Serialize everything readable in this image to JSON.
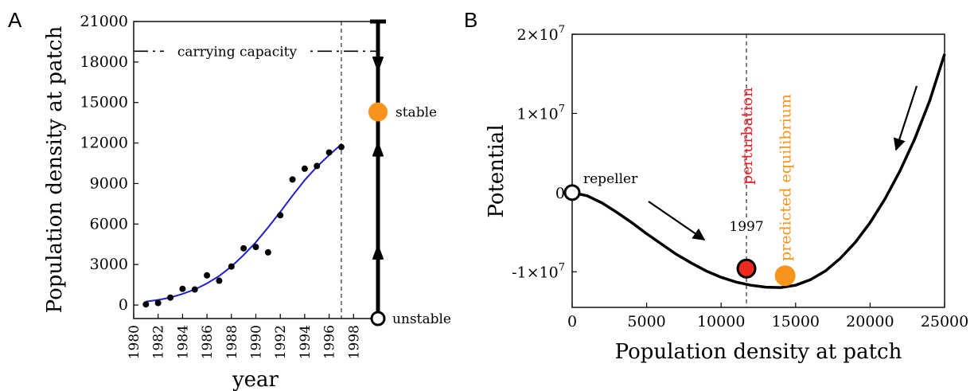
{
  "panel_a_letter": "A",
  "panel_b_letter": "B",
  "chart_data": [
    {
      "type": "scatter",
      "panel": "A",
      "xlabel": "year",
      "ylabel": "Population density at patch",
      "xlim": [
        1980,
        2000
      ],
      "ylim": [
        -1000,
        21000
      ],
      "xticks": [
        1980,
        1982,
        1984,
        1986,
        1988,
        1990,
        1992,
        1994,
        1996,
        1998
      ],
      "yticks": [
        0,
        3000,
        6000,
        9000,
        12000,
        15000,
        18000,
        21000
      ],
      "points": [
        {
          "x": 1981,
          "y": 50
        },
        {
          "x": 1982,
          "y": 150
        },
        {
          "x": 1983,
          "y": 550
        },
        {
          "x": 1984,
          "y": 1200
        },
        {
          "x": 1985,
          "y": 1150
        },
        {
          "x": 1986,
          "y": 2200
        },
        {
          "x": 1987,
          "y": 1800
        },
        {
          "x": 1988,
          "y": 2850
        },
        {
          "x": 1989,
          "y": 4200
        },
        {
          "x": 1990,
          "y": 4300
        },
        {
          "x": 1991,
          "y": 3900
        },
        {
          "x": 1992,
          "y": 6650
        },
        {
          "x": 1993,
          "y": 9300
        },
        {
          "x": 1994,
          "y": 10100
        },
        {
          "x": 1995,
          "y": 10300
        },
        {
          "x": 1996,
          "y": 11300
        },
        {
          "x": 1997,
          "y": 11700
        }
      ],
      "fit_curve": {
        "x": [
          1981,
          1982,
          1983,
          1984,
          1985,
          1986,
          1987,
          1988,
          1989,
          1990,
          1991,
          1992,
          1993,
          1994,
          1995,
          1996,
          1997
        ],
        "y": [
          250,
          380,
          560,
          820,
          1150,
          1600,
          2150,
          2850,
          3700,
          4650,
          5750,
          6900,
          8100,
          9250,
          10250,
          11100,
          11900
        ],
        "color": "#1f1fcf"
      },
      "vline_x": 1997,
      "carrying_capacity": {
        "label": "carrying capacity",
        "value": 18800
      },
      "phase_line": {
        "stable": {
          "label": "stable",
          "value": 14300,
          "color": "#f7941d"
        },
        "unstable": {
          "label": "unstable",
          "value": -1000
        }
      }
    },
    {
      "type": "line",
      "panel": "B",
      "xlabel": "Population density at patch",
      "ylabel": "Potential",
      "xlim": [
        0,
        25000
      ],
      "ylim": [
        -14500000,
        20000000
      ],
      "xticks": [
        0,
        5000,
        10000,
        15000,
        20000,
        25000
      ],
      "yticks": [
        {
          "value": 20000000,
          "label": "2×10",
          "exp": "7"
        },
        {
          "value": 10000000,
          "label": "1×10",
          "exp": "7"
        },
        {
          "value": 0,
          "label": "0",
          "exp": ""
        },
        {
          "value": -10000000,
          "label": "-1×10",
          "exp": "7"
        }
      ],
      "curve": {
        "x": [
          0,
          1000,
          2000,
          3000,
          4000,
          5000,
          6000,
          7000,
          8000,
          9000,
          10000,
          11000,
          12000,
          13000,
          14000,
          15000,
          16000,
          17000,
          18000,
          19000,
          20000,
          21000,
          22000,
          23000,
          24000,
          25000
        ],
        "y": [
          0,
          -400000,
          -1300000,
          -2500000,
          -3800000,
          -5200000,
          -6500000,
          -7800000,
          -8900000,
          -9900000,
          -10700000,
          -11300000,
          -11700000,
          -11950000,
          -12000000,
          -11700000,
          -11000000,
          -9900000,
          -8300000,
          -6300000,
          -3800000,
          -800000,
          2700000,
          6800000,
          11600000,
          17500000
        ]
      },
      "vline": {
        "x": 11700,
        "label": "1997"
      },
      "repeller": {
        "x": 0,
        "y": 0,
        "label": "repeller"
      },
      "perturbation": {
        "x": 11700,
        "y": -9600000,
        "label": "perturbation",
        "color": "#ee1c25",
        "fill": "#ee2a1f"
      },
      "predicted_equilibrium": {
        "x": 14300,
        "y": -10500000,
        "label": "predicted equilibrium",
        "color": "#f7941d"
      }
    }
  ]
}
